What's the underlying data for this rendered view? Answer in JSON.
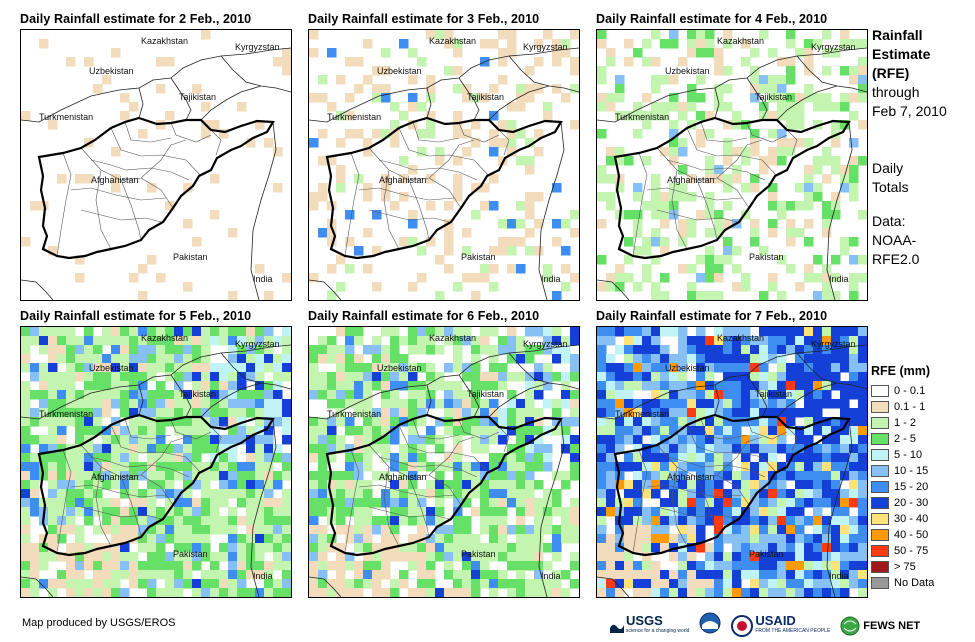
{
  "panels": [
    {
      "title": "Daily Rainfall estimate for 2 Feb., 2010",
      "intensity": 0
    },
    {
      "title": "Daily Rainfall estimate for 3 Feb., 2010",
      "intensity": 1
    },
    {
      "title": "Daily Rainfall estimate for 4 Feb., 2010",
      "intensity": 2
    },
    {
      "title": "Daily Rainfall estimate for 5 Feb., 2010",
      "intensity": 3
    },
    {
      "title": "Daily Rainfall estimate for 6 Feb., 2010",
      "intensity": 3
    },
    {
      "title": "Daily Rainfall estimate for 7 Feb., 2010",
      "intensity": 4
    }
  ],
  "countries": {
    "kazakhstan": "Kazakhstan",
    "kyrgyzstan": "Kyrgyzstan",
    "uzbekistan": "Uzbekistan",
    "tajikistan": "Tajikistan",
    "turkmenistan": "Turkmenistan",
    "afghanistan": "Afghanistan",
    "pakistan": "Pakistan",
    "india": "India"
  },
  "side": {
    "line1": "Rainfall",
    "line2": "Estimate",
    "line3": "(RFE)",
    "line4": "through",
    "line5": "Feb 7, 2010",
    "daily1": "Daily",
    "daily2": "Totals",
    "data1": "Data:",
    "data2": "NOAA-",
    "data3": "RFE2.0"
  },
  "legend": {
    "title": "RFE (mm)",
    "items": [
      {
        "label": "0 - 0.1",
        "color": "#ffffff"
      },
      {
        "label": "0.1 - 1",
        "color": "#f2dcbb"
      },
      {
        "label": "1 - 2",
        "color": "#c4f5b0"
      },
      {
        "label": "2 - 5",
        "color": "#66e066"
      },
      {
        "label": "5 - 10",
        "color": "#bff3f5"
      },
      {
        "label": "10 - 15",
        "color": "#86c0f5"
      },
      {
        "label": "15 - 20",
        "color": "#3d8ef0"
      },
      {
        "label": "20 - 30",
        "color": "#1440d8"
      },
      {
        "label": "30 - 40",
        "color": "#ffe27a"
      },
      {
        "label": "40 - 50",
        "color": "#ff9a00"
      },
      {
        "label": "50 - 75",
        "color": "#ff3a10"
      },
      {
        "label": "> 75",
        "color": "#a01818"
      },
      {
        "label": "No Data",
        "color": "#999999"
      }
    ]
  },
  "credit": "Map produced by USGS/EROS",
  "logos": {
    "usgs": "USGS",
    "usgs_tag": "science for a changing world",
    "usaid": "USAID",
    "usaid_tag": "FROM THE AMERICAN PEOPLE",
    "fews": "FEWS NET"
  }
}
